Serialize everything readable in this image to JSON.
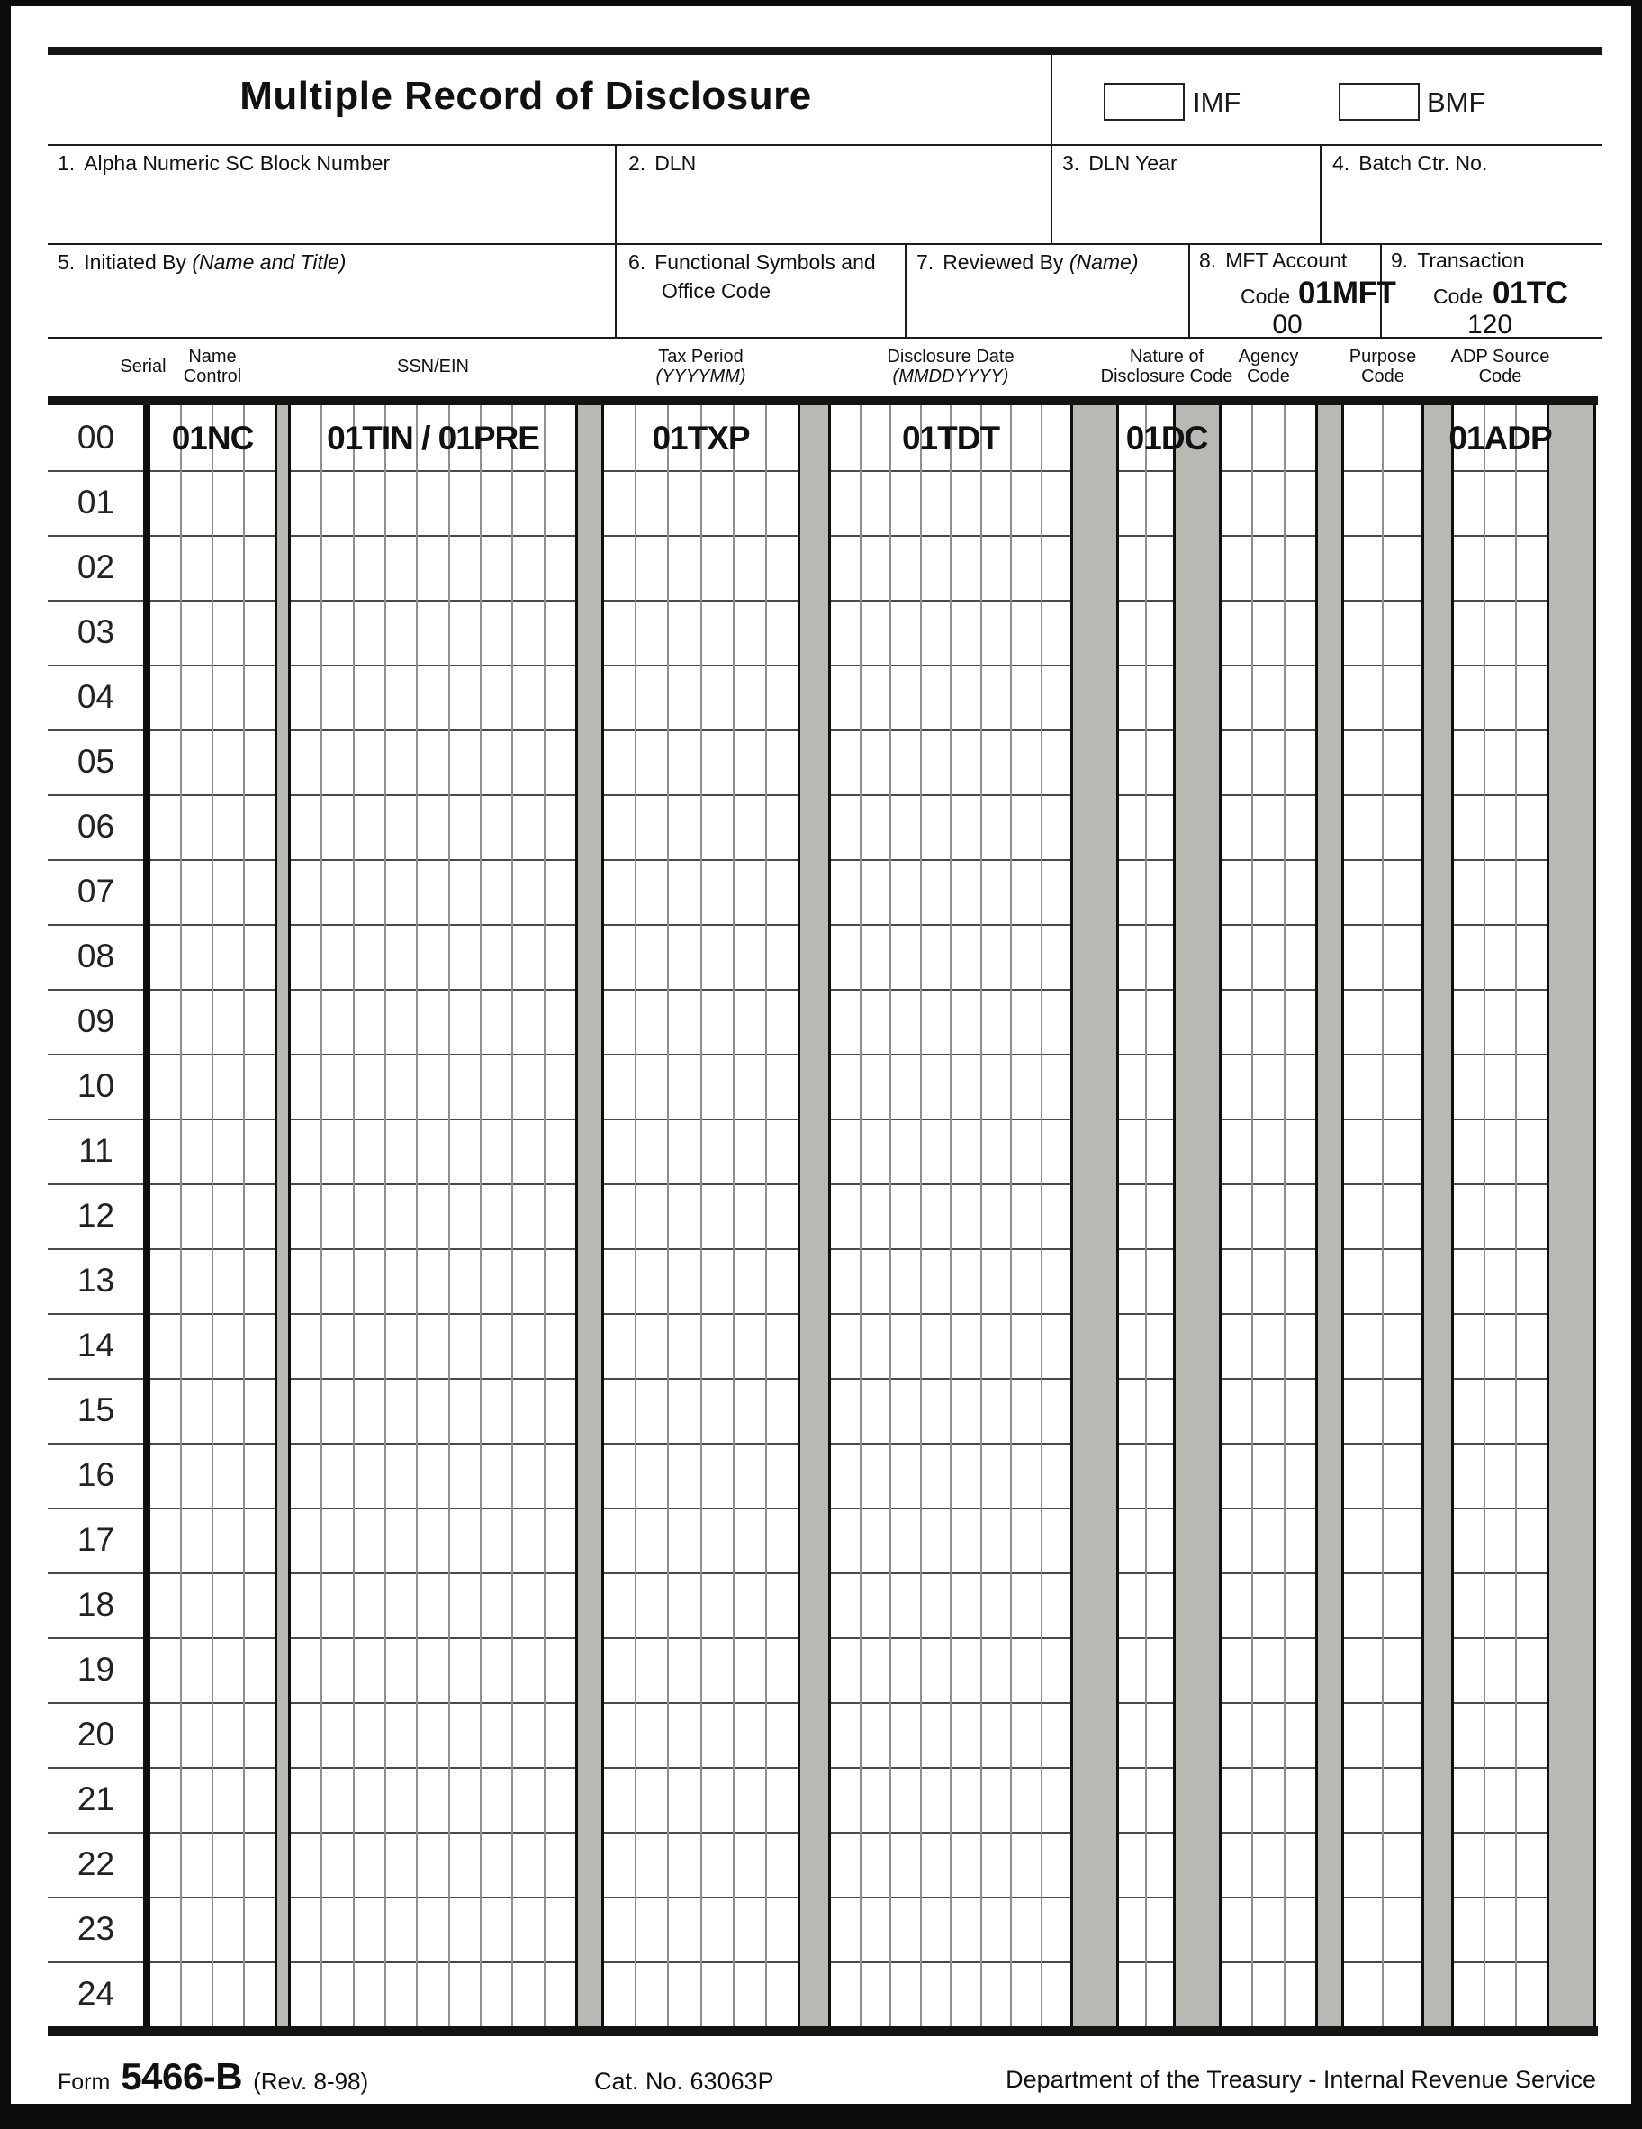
{
  "form": {
    "title": "Multiple Record of Disclosure",
    "imf_label": "IMF",
    "bmf_label": "BMF"
  },
  "fields_row1": [
    {
      "no": "1.",
      "label": "Alpha Numeric SC Block Number"
    },
    {
      "no": "2.",
      "label": "DLN"
    },
    {
      "no": "3.",
      "label": "DLN Year"
    },
    {
      "no": "4.",
      "label": "Batch Ctr. No."
    }
  ],
  "fields_row2": [
    {
      "no": "5.",
      "label": "Initiated By",
      "italic": "(Name and Title)"
    },
    {
      "no": "6.",
      "label": "Functional Symbols and",
      "label_line2": "Office Code"
    },
    {
      "no": "7.",
      "label": "Reviewed By",
      "italic": "(Name)"
    }
  ],
  "code_boxes": [
    {
      "no": "8.",
      "label": "MFT Account",
      "code_word": "Code",
      "code_value": "01MFT",
      "number": "00"
    },
    {
      "no": "9.",
      "label": "Transaction",
      "code_word": "Code",
      "code_value": "01TC",
      "number": "120"
    }
  ],
  "grid": {
    "serial_header": "Serial",
    "serials": [
      "00",
      "01",
      "02",
      "03",
      "04",
      "05",
      "06",
      "07",
      "08",
      "09",
      "10",
      "11",
      "12",
      "13",
      "14",
      "15",
      "16",
      "17",
      "18",
      "19",
      "20",
      "21",
      "22",
      "23",
      "24"
    ],
    "columns": [
      {
        "id": "name-control",
        "header_lines": [
          "Name",
          "Control"
        ],
        "cells": 4,
        "row00_value": "01NC"
      },
      {
        "id": "ssn-ein",
        "header_lines": [
          "SSN/EIN"
        ],
        "cells": 9,
        "row00_value": "01TIN / 01PRE"
      },
      {
        "id": "tax-period",
        "header_lines": [
          "Tax Period"
        ],
        "header_italic": "(YYYYMM)",
        "cells": 6,
        "row00_value": "01TXP"
      },
      {
        "id": "disclosure-date",
        "header_lines": [
          "Disclosure Date"
        ],
        "header_italic": "(MMDDYYYY)",
        "cells": 8,
        "row00_value": "01TDT"
      },
      {
        "id": "nature-of-disclosure-code",
        "header_lines": [
          "Nature of",
          "Disclosure Code"
        ],
        "cells": 2,
        "row00_value": "01DC"
      },
      {
        "id": "agency-code",
        "header_lines": [
          "Agency",
          "Code"
        ],
        "cells": 3,
        "row00_value": ""
      },
      {
        "id": "purpose-code",
        "header_lines": [
          "Purpose",
          "Code"
        ],
        "cells": 2,
        "row00_value": ""
      },
      {
        "id": "adp-source-code",
        "header_lines": [
          "ADP Source",
          "Code"
        ],
        "cells": 3,
        "row00_value": "01ADP"
      }
    ]
  },
  "footer": {
    "form_word": "Form",
    "form_number": "5466-B",
    "revision": "(Rev. 8-98)",
    "catalog": "Cat. No. 63063P",
    "department": "Department of the Treasury - Internal Revenue Service"
  }
}
